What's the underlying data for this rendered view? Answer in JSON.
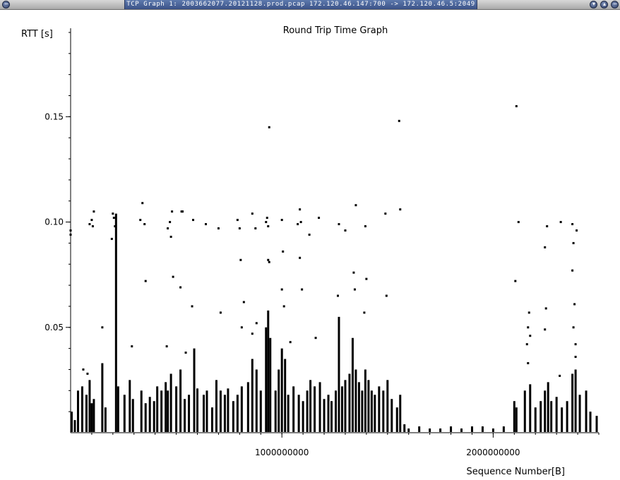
{
  "window": {
    "title": "TCP Graph 1: 2003662077.20121128.prod.pcap 172.120.46.147:700 -> 172.120.46.5:2049",
    "menu_icon": "minus-circle-icon",
    "buttons": [
      {
        "name": "minimize-icon",
        "glyph": "▾"
      },
      {
        "name": "maximize-icon",
        "glyph": "▴"
      },
      {
        "name": "close-icon",
        "glyph": "−"
      }
    ]
  },
  "chart_data": {
    "type": "scatter",
    "title": "Round Trip Time Graph",
    "xlabel": "Sequence Number[B]",
    "ylabel": "RTT [s]",
    "xlim": [
      0,
      2500000000
    ],
    "ylim": [
      0,
      0.192
    ],
    "x_ticks": [
      {
        "value": 1000000000,
        "label": "1000000000"
      },
      {
        "value": 2000000000,
        "label": "2000000000"
      }
    ],
    "x_minor_step": 100000000,
    "y_ticks": [
      {
        "value": 0.05,
        "label": "0.05"
      },
      {
        "value": 0.1,
        "label": "0.10"
      },
      {
        "value": 0.15,
        "label": "0.15"
      }
    ],
    "y_minor_step": 0.01,
    "grid": false,
    "marker_color": "#000000",
    "points": [
      [
        0,
        0.096
      ],
      [
        0,
        0.094
      ],
      [
        90000000,
        0.099
      ],
      [
        100000000,
        0.101
      ],
      [
        110000000,
        0.105
      ],
      [
        105000000,
        0.098
      ],
      [
        60000000,
        0.03
      ],
      [
        80000000,
        0.028
      ],
      [
        150000000,
        0.05
      ],
      [
        200000000,
        0.104
      ],
      [
        205000000,
        0.102
      ],
      [
        210000000,
        0.098
      ],
      [
        195000000,
        0.092
      ],
      [
        340000000,
        0.109
      ],
      [
        330000000,
        0.101
      ],
      [
        350000000,
        0.099
      ],
      [
        355000000,
        0.072
      ],
      [
        290000000,
        0.041
      ],
      [
        480000000,
        0.105
      ],
      [
        470000000,
        0.1
      ],
      [
        460000000,
        0.097
      ],
      [
        475000000,
        0.093
      ],
      [
        485000000,
        0.074
      ],
      [
        455000000,
        0.041
      ],
      [
        530000000,
        0.105
      ],
      [
        525000000,
        0.105
      ],
      [
        520000000,
        0.069
      ],
      [
        545000000,
        0.038
      ],
      [
        580000000,
        0.101
      ],
      [
        575000000,
        0.06
      ],
      [
        640000000,
        0.099
      ],
      [
        700000000,
        0.097
      ],
      [
        710000000,
        0.057
      ],
      [
        790000000,
        0.101
      ],
      [
        800000000,
        0.097
      ],
      [
        805000000,
        0.082
      ],
      [
        820000000,
        0.062
      ],
      [
        810000000,
        0.05
      ],
      [
        860000000,
        0.104
      ],
      [
        875000000,
        0.097
      ],
      [
        880000000,
        0.052
      ],
      [
        860000000,
        0.047
      ],
      [
        930000000,
        0.102
      ],
      [
        925000000,
        0.1
      ],
      [
        935000000,
        0.098
      ],
      [
        940000000,
        0.145
      ],
      [
        935000000,
        0.082
      ],
      [
        940000000,
        0.081
      ],
      [
        1000000000,
        0.101
      ],
      [
        1005000000,
        0.086
      ],
      [
        1000000000,
        0.068
      ],
      [
        1010000000,
        0.06
      ],
      [
        1040000000,
        0.043
      ],
      [
        1085000000,
        0.106
      ],
      [
        1090000000,
        0.1
      ],
      [
        1075000000,
        0.099
      ],
      [
        1085000000,
        0.083
      ],
      [
        1095000000,
        0.068
      ],
      [
        1130000000,
        0.094
      ],
      [
        1175000000,
        0.102
      ],
      [
        1160000000,
        0.045
      ],
      [
        1270000000,
        0.099
      ],
      [
        1265000000,
        0.065
      ],
      [
        1300000000,
        0.096
      ],
      [
        1350000000,
        0.108
      ],
      [
        1340000000,
        0.076
      ],
      [
        1345000000,
        0.068
      ],
      [
        1395000000,
        0.098
      ],
      [
        1400000000,
        0.073
      ],
      [
        1390000000,
        0.057
      ],
      [
        1490000000,
        0.104
      ],
      [
        1495000000,
        0.065
      ],
      [
        1555000000,
        0.148
      ],
      [
        1560000000,
        0.106
      ],
      [
        2110000000,
        0.155
      ],
      [
        2120000000,
        0.1
      ],
      [
        2105000000,
        0.072
      ],
      [
        2170000000,
        0.057
      ],
      [
        2165000000,
        0.05
      ],
      [
        2175000000,
        0.046
      ],
      [
        2160000000,
        0.042
      ],
      [
        2165000000,
        0.033
      ],
      [
        2255000000,
        0.098
      ],
      [
        2245000000,
        0.088
      ],
      [
        2250000000,
        0.059
      ],
      [
        2245000000,
        0.049
      ],
      [
        2320000000,
        0.1
      ],
      [
        2315000000,
        0.027
      ],
      [
        2375000000,
        0.099
      ],
      [
        2395000000,
        0.096
      ],
      [
        2380000000,
        0.09
      ],
      [
        2375000000,
        0.077
      ],
      [
        2385000000,
        0.061
      ],
      [
        2380000000,
        0.05
      ],
      [
        2390000000,
        0.042
      ],
      [
        2390000000,
        0.036
      ]
    ],
    "spikes": [
      [
        5000000,
        0.01
      ],
      [
        20000000,
        0.006
      ],
      [
        35000000,
        0.02
      ],
      [
        55000000,
        0.022
      ],
      [
        75000000,
        0.018
      ],
      [
        90000000,
        0.025
      ],
      [
        100000000,
        0.014
      ],
      [
        110000000,
        0.016
      ],
      [
        150000000,
        0.033
      ],
      [
        165000000,
        0.012
      ],
      [
        215000000,
        0.104
      ],
      [
        225000000,
        0.022
      ],
      [
        255000000,
        0.018
      ],
      [
        280000000,
        0.025
      ],
      [
        295000000,
        0.016
      ],
      [
        335000000,
        0.02
      ],
      [
        355000000,
        0.014
      ],
      [
        375000000,
        0.017
      ],
      [
        395000000,
        0.015
      ],
      [
        410000000,
        0.022
      ],
      [
        430000000,
        0.02
      ],
      [
        450000000,
        0.024
      ],
      [
        460000000,
        0.02
      ],
      [
        475000000,
        0.028
      ],
      [
        500000000,
        0.022
      ],
      [
        520000000,
        0.03
      ],
      [
        540000000,
        0.016
      ],
      [
        560000000,
        0.018
      ],
      [
        585000000,
        0.04
      ],
      [
        600000000,
        0.021
      ],
      [
        630000000,
        0.018
      ],
      [
        645000000,
        0.02
      ],
      [
        670000000,
        0.012
      ],
      [
        690000000,
        0.025
      ],
      [
        710000000,
        0.02
      ],
      [
        730000000,
        0.018
      ],
      [
        745000000,
        0.021
      ],
      [
        770000000,
        0.015
      ],
      [
        790000000,
        0.018
      ],
      [
        810000000,
        0.022
      ],
      [
        840000000,
        0.024
      ],
      [
        860000000,
        0.035
      ],
      [
        880000000,
        0.03
      ],
      [
        900000000,
        0.02
      ],
      [
        925000000,
        0.05
      ],
      [
        935000000,
        0.058
      ],
      [
        945000000,
        0.045
      ],
      [
        970000000,
        0.02
      ],
      [
        985000000,
        0.03
      ],
      [
        1000000000,
        0.04
      ],
      [
        1015000000,
        0.035
      ],
      [
        1030000000,
        0.018
      ],
      [
        1055000000,
        0.022
      ],
      [
        1080000000,
        0.018
      ],
      [
        1100000000,
        0.015
      ],
      [
        1120000000,
        0.02
      ],
      [
        1135000000,
        0.025
      ],
      [
        1155000000,
        0.022
      ],
      [
        1180000000,
        0.024
      ],
      [
        1200000000,
        0.016
      ],
      [
        1220000000,
        0.018
      ],
      [
        1235000000,
        0.015
      ],
      [
        1255000000,
        0.02
      ],
      [
        1270000000,
        0.055
      ],
      [
        1285000000,
        0.022
      ],
      [
        1300000000,
        0.025
      ],
      [
        1320000000,
        0.028
      ],
      [
        1335000000,
        0.045
      ],
      [
        1350000000,
        0.03
      ],
      [
        1365000000,
        0.024
      ],
      [
        1380000000,
        0.02
      ],
      [
        1395000000,
        0.03
      ],
      [
        1410000000,
        0.025
      ],
      [
        1425000000,
        0.02
      ],
      [
        1440000000,
        0.018
      ],
      [
        1460000000,
        0.022
      ],
      [
        1480000000,
        0.02
      ],
      [
        1500000000,
        0.025
      ],
      [
        1520000000,
        0.016
      ],
      [
        1545000000,
        0.012
      ],
      [
        1560000000,
        0.018
      ],
      [
        1580000000,
        0.004
      ],
      [
        1600000000,
        0.002
      ],
      [
        1650000000,
        0.003
      ],
      [
        1700000000,
        0.002
      ],
      [
        1750000000,
        0.002
      ],
      [
        1800000000,
        0.003
      ],
      [
        1850000000,
        0.002
      ],
      [
        1900000000,
        0.003
      ],
      [
        1950000000,
        0.003
      ],
      [
        2000000000,
        0.002
      ],
      [
        2050000000,
        0.003
      ],
      [
        2100000000,
        0.015
      ],
      [
        2110000000,
        0.012
      ],
      [
        2150000000,
        0.02
      ],
      [
        2175000000,
        0.023
      ],
      [
        2200000000,
        0.012
      ],
      [
        2225000000,
        0.015
      ],
      [
        2245000000,
        0.02
      ],
      [
        2260000000,
        0.024
      ],
      [
        2275000000,
        0.015
      ],
      [
        2300000000,
        0.017
      ],
      [
        2325000000,
        0.012
      ],
      [
        2350000000,
        0.015
      ],
      [
        2375000000,
        0.028
      ],
      [
        2390000000,
        0.03
      ],
      [
        2410000000,
        0.018
      ],
      [
        2440000000,
        0.02
      ],
      [
        2460000000,
        0.01
      ],
      [
        2490000000,
        0.008
      ]
    ]
  }
}
